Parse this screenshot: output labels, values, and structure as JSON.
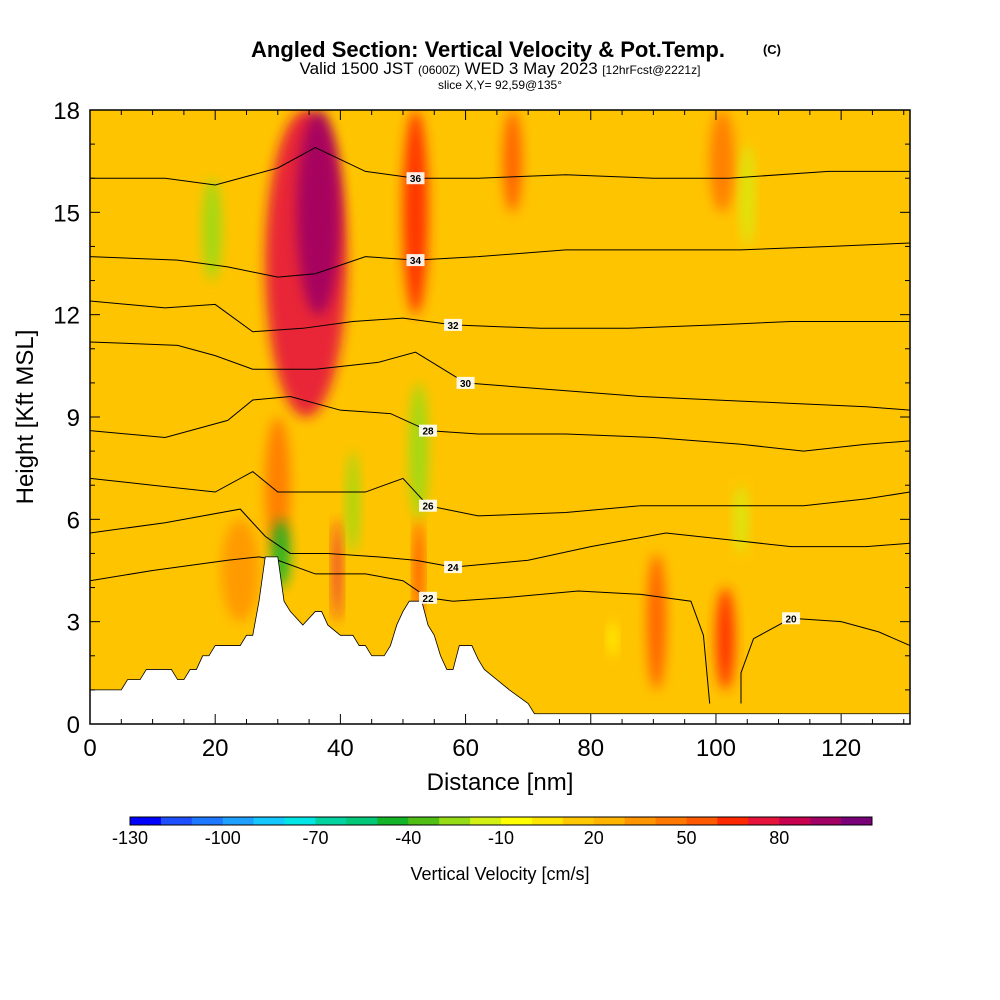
{
  "title": {
    "main": "Angled Section: Vertical Velocity & Pot.Temp.",
    "units": "(C)",
    "valid_prefix": "Valid 1500 JST",
    "valid_z": "(0600Z)",
    "valid_date": "WED 3 May 2023",
    "valid_fcst": "[12hrFcst@2221z]",
    "slice": "slice X,Y= 92,59@135°"
  },
  "chart_data": {
    "type": "heatmap",
    "xlabel": "Distance [nm]",
    "ylabel": "Height [Kft MSL]",
    "xlim": [
      0,
      131
    ],
    "ylim": [
      0,
      18
    ],
    "x_ticks": [
      0,
      20,
      40,
      60,
      80,
      100,
      120
    ],
    "y_ticks": [
      0,
      3,
      6,
      9,
      12,
      15,
      18
    ],
    "x_tick_labels": [
      "0",
      "20",
      "40",
      "60",
      "80",
      "100",
      "120"
    ],
    "y_tick_labels": [
      "0",
      "3",
      "6",
      "9",
      "12",
      "15",
      "18"
    ],
    "colorbar": {
      "title": "Vertical Velocity [cm/s]",
      "tick_labels": [
        "-130",
        "-100",
        "-70",
        "-40",
        "-10",
        "20",
        "50",
        "80"
      ],
      "bins": [
        "#0000ff",
        "#1e4fff",
        "#1e78ff",
        "#1ea0ff",
        "#14c8ff",
        "#00e6e6",
        "#00d2a0",
        "#00c878",
        "#14b428",
        "#50be14",
        "#96dc14",
        "#d2f014",
        "#ffff00",
        "#ffe600",
        "#ffc800",
        "#ffb400",
        "#ff9600",
        "#ff7800",
        "#ff5a00",
        "#ff2800",
        "#e6143c",
        "#c80050",
        "#a00064",
        "#780078"
      ]
    },
    "background_color": "#ffc400",
    "velocity_cells": [
      {
        "x": [
          28,
          41
        ],
        "y": [
          9,
          18
        ],
        "w": 60
      },
      {
        "x": [
          33,
          40
        ],
        "y": [
          12,
          18
        ],
        "w": 85
      },
      {
        "x": [
          50,
          54
        ],
        "y": [
          12,
          18
        ],
        "w": 55
      },
      {
        "x": [
          28,
          32
        ],
        "y": [
          5,
          9
        ],
        "w": 35
      },
      {
        "x": [
          39,
          40
        ],
        "y": [
          3,
          6
        ],
        "w": 60
      },
      {
        "x": [
          52,
          53
        ],
        "y": [
          3,
          6
        ],
        "w": 55
      },
      {
        "x": [
          100,
          103
        ],
        "y": [
          1,
          4
        ],
        "w": 50
      },
      {
        "x": [
          89,
          92
        ],
        "y": [
          1,
          5
        ],
        "w": 45
      },
      {
        "x": [
          66,
          69
        ],
        "y": [
          15,
          18
        ],
        "w": 40
      },
      {
        "x": [
          99,
          103
        ],
        "y": [
          15,
          18
        ],
        "w": 35
      },
      {
        "x": [
          21,
          27
        ],
        "y": [
          3,
          6
        ],
        "w": 25
      },
      {
        "x": [
          18,
          21
        ],
        "y": [
          13,
          16
        ],
        "w": -35
      },
      {
        "x": [
          29,
          32
        ],
        "y": [
          4,
          6
        ],
        "w": -55
      },
      {
        "x": [
          41,
          43
        ],
        "y": [
          5,
          8
        ],
        "w": -40
      },
      {
        "x": [
          51,
          54
        ],
        "y": [
          6,
          10
        ],
        "w": -35
      },
      {
        "x": [
          104,
          106
        ],
        "y": [
          14,
          17
        ],
        "w": -30
      },
      {
        "x": [
          103,
          105
        ],
        "y": [
          5,
          7
        ],
        "w": -30
      },
      {
        "x": [
          83,
          84
        ],
        "y": [
          2,
          3
        ],
        "w": -20
      }
    ],
    "theta_contours": [
      {
        "level": 20,
        "label": "20",
        "points": [
          [
            104,
            0.6
          ],
          [
            104,
            1.5
          ],
          [
            106,
            2.5
          ],
          [
            112,
            3.1
          ],
          [
            120,
            3.0
          ],
          [
            126,
            2.7
          ],
          [
            131,
            2.3
          ]
        ]
      },
      {
        "level": 22,
        "label": "22",
        "points": [
          [
            0,
            4.2
          ],
          [
            10,
            4.5
          ],
          [
            22,
            4.8
          ],
          [
            27,
            4.9
          ],
          [
            30,
            4.8
          ],
          [
            36,
            4.4
          ],
          [
            44,
            4.4
          ],
          [
            50,
            4.2
          ],
          [
            54,
            3.7
          ],
          [
            58,
            3.6
          ],
          [
            66,
            3.7
          ],
          [
            78,
            3.9
          ],
          [
            88,
            3.8
          ],
          [
            96,
            3.6
          ],
          [
            98,
            2.6
          ],
          [
            99,
            0.6
          ]
        ]
      },
      {
        "level": 24,
        "label": "24",
        "points": [
          [
            0,
            5.6
          ],
          [
            12,
            5.9
          ],
          [
            24,
            6.3
          ],
          [
            28,
            5.5
          ],
          [
            32,
            5.0
          ],
          [
            38,
            5.0
          ],
          [
            46,
            4.9
          ],
          [
            52,
            4.8
          ],
          [
            58,
            4.6
          ],
          [
            70,
            4.8
          ],
          [
            80,
            5.2
          ],
          [
            92,
            5.6
          ],
          [
            102,
            5.4
          ],
          [
            112,
            5.2
          ],
          [
            124,
            5.2
          ],
          [
            131,
            5.3
          ]
        ]
      },
      {
        "level": 26,
        "label": "26",
        "points": [
          [
            0,
            7.2
          ],
          [
            10,
            7.0
          ],
          [
            20,
            6.8
          ],
          [
            26,
            7.4
          ],
          [
            30,
            6.8
          ],
          [
            36,
            6.8
          ],
          [
            44,
            6.8
          ],
          [
            50,
            7.2
          ],
          [
            54,
            6.4
          ],
          [
            62,
            6.1
          ],
          [
            76,
            6.2
          ],
          [
            88,
            6.4
          ],
          [
            102,
            6.4
          ],
          [
            114,
            6.4
          ],
          [
            124,
            6.6
          ],
          [
            131,
            6.8
          ]
        ]
      },
      {
        "level": 28,
        "label": "28",
        "points": [
          [
            0,
            8.6
          ],
          [
            12,
            8.4
          ],
          [
            22,
            8.9
          ],
          [
            26,
            9.5
          ],
          [
            32,
            9.6
          ],
          [
            40,
            9.2
          ],
          [
            48,
            9.1
          ],
          [
            54,
            8.6
          ],
          [
            62,
            8.5
          ],
          [
            76,
            8.5
          ],
          [
            90,
            8.4
          ],
          [
            104,
            8.2
          ],
          [
            114,
            8.0
          ],
          [
            124,
            8.2
          ],
          [
            131,
            8.3
          ]
        ]
      },
      {
        "level": 30,
        "label": "30",
        "points": [
          [
            0,
            11.2
          ],
          [
            14,
            11.1
          ],
          [
            20,
            10.8
          ],
          [
            26,
            10.4
          ],
          [
            36,
            10.4
          ],
          [
            46,
            10.6
          ],
          [
            52,
            10.9
          ],
          [
            60,
            10.0
          ],
          [
            74,
            9.8
          ],
          [
            88,
            9.6
          ],
          [
            100,
            9.5
          ],
          [
            112,
            9.4
          ],
          [
            124,
            9.3
          ],
          [
            131,
            9.2
          ]
        ]
      },
      {
        "level": 32,
        "label": "32",
        "points": [
          [
            0,
            12.4
          ],
          [
            12,
            12.2
          ],
          [
            20,
            12.3
          ],
          [
            26,
            11.5
          ],
          [
            34,
            11.6
          ],
          [
            42,
            11.8
          ],
          [
            50,
            11.9
          ],
          [
            58,
            11.7
          ],
          [
            72,
            11.6
          ],
          [
            86,
            11.6
          ],
          [
            100,
            11.7
          ],
          [
            112,
            11.8
          ],
          [
            124,
            11.8
          ],
          [
            131,
            11.8
          ]
        ]
      },
      {
        "level": 34,
        "label": "34",
        "points": [
          [
            0,
            13.7
          ],
          [
            14,
            13.6
          ],
          [
            22,
            13.4
          ],
          [
            30,
            13.1
          ],
          [
            36,
            13.2
          ],
          [
            44,
            13.7
          ],
          [
            52,
            13.6
          ],
          [
            62,
            13.7
          ],
          [
            76,
            13.9
          ],
          [
            90,
            13.9
          ],
          [
            104,
            13.9
          ],
          [
            118,
            14.0
          ],
          [
            131,
            14.1
          ]
        ]
      },
      {
        "level": 36,
        "label": "36",
        "points": [
          [
            0,
            16.0
          ],
          [
            12,
            16.0
          ],
          [
            20,
            15.8
          ],
          [
            30,
            16.3
          ],
          [
            36,
            16.9
          ],
          [
            44,
            16.2
          ],
          [
            52,
            16.0
          ],
          [
            62,
            16.0
          ],
          [
            76,
            16.1
          ],
          [
            90,
            16.0
          ],
          [
            102,
            16.0
          ],
          [
            118,
            16.2
          ],
          [
            131,
            16.2
          ]
        ]
      }
    ],
    "terrain": [
      [
        0,
        1.0
      ],
      [
        5,
        1.0
      ],
      [
        6,
        1.3
      ],
      [
        8,
        1.3
      ],
      [
        9,
        1.6
      ],
      [
        13,
        1.6
      ],
      [
        14,
        1.3
      ],
      [
        15,
        1.3
      ],
      [
        16,
        1.6
      ],
      [
        17,
        1.6
      ],
      [
        18,
        2.0
      ],
      [
        19,
        2.0
      ],
      [
        20,
        2.3
      ],
      [
        24,
        2.3
      ],
      [
        25,
        2.6
      ],
      [
        26,
        2.6
      ],
      [
        27,
        3.6
      ],
      [
        28,
        4.9
      ],
      [
        30,
        4.9
      ],
      [
        31,
        3.6
      ],
      [
        32,
        3.3
      ],
      [
        34,
        2.9
      ],
      [
        36,
        3.3
      ],
      [
        37,
        3.3
      ],
      [
        38,
        2.9
      ],
      [
        40,
        2.6
      ],
      [
        42,
        2.6
      ],
      [
        43,
        2.3
      ],
      [
        44,
        2.3
      ],
      [
        45,
        2.0
      ],
      [
        47,
        2.0
      ],
      [
        48,
        2.3
      ],
      [
        49,
        2.9
      ],
      [
        50,
        3.3
      ],
      [
        51,
        3.6
      ],
      [
        53,
        3.6
      ],
      [
        54,
        2.9
      ],
      [
        55,
        2.6
      ],
      [
        56,
        2.0
      ],
      [
        57,
        1.6
      ],
      [
        58,
        1.6
      ],
      [
        59,
        2.3
      ],
      [
        61,
        2.3
      ],
      [
        62,
        1.9
      ],
      [
        63,
        1.6
      ],
      [
        65,
        1.3
      ],
      [
        67,
        1.0
      ],
      [
        70,
        0.6
      ],
      [
        71,
        0.3
      ],
      [
        131,
        0.3
      ]
    ]
  }
}
